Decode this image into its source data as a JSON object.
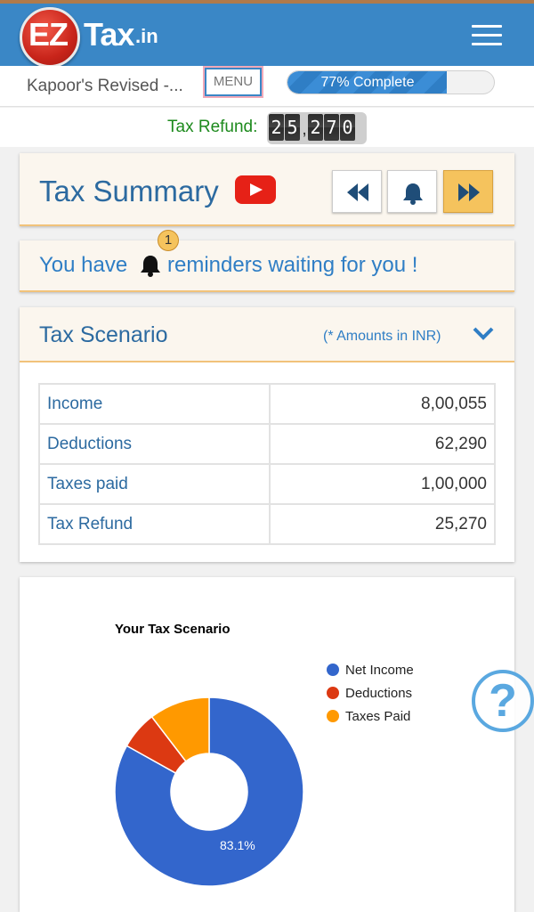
{
  "header": {
    "logo_ez": "EZ",
    "logo_tax": "Tax",
    "logo_in": ".in"
  },
  "infobar": {
    "filename": "Kapoor's Revised -...",
    "menu_label": "MENU",
    "progress_label": "77% Complete",
    "progress_fraction": 0.77
  },
  "refund": {
    "label": "Tax Refund:",
    "digits": [
      "2",
      "5",
      ",",
      "2",
      "7",
      "0"
    ]
  },
  "summary": {
    "title": "Tax Summary"
  },
  "reminder": {
    "text_before": "You have",
    "text_after": "reminders waiting for you !",
    "count": "1"
  },
  "scenario": {
    "title": "Tax Scenario",
    "note": "(* Amounts in INR)",
    "rows": [
      {
        "label": "Income",
        "value": "8,00,055"
      },
      {
        "label": "Deductions",
        "value": "62,290"
      },
      {
        "label": "Taxes paid",
        "value": "1,00,000"
      },
      {
        "label": "Tax Refund",
        "value": "25,270"
      }
    ]
  },
  "chart_data": {
    "type": "pie",
    "title": "Your Tax Scenario",
    "categories": [
      "Net Income",
      "Deductions",
      "Taxes Paid"
    ],
    "values": [
      83.1,
      6.5,
      10.4
    ],
    "colors": [
      "#3366cc",
      "#dc3912",
      "#ff9900"
    ],
    "data_labels": [
      "83.1%"
    ],
    "legend": "right",
    "donut": true
  },
  "help": {
    "symbol": "?"
  },
  "colors": {
    "header_bg": "#3a87c6",
    "accent_gold": "#f5c35d",
    "link_blue": "#2f7ec5"
  }
}
